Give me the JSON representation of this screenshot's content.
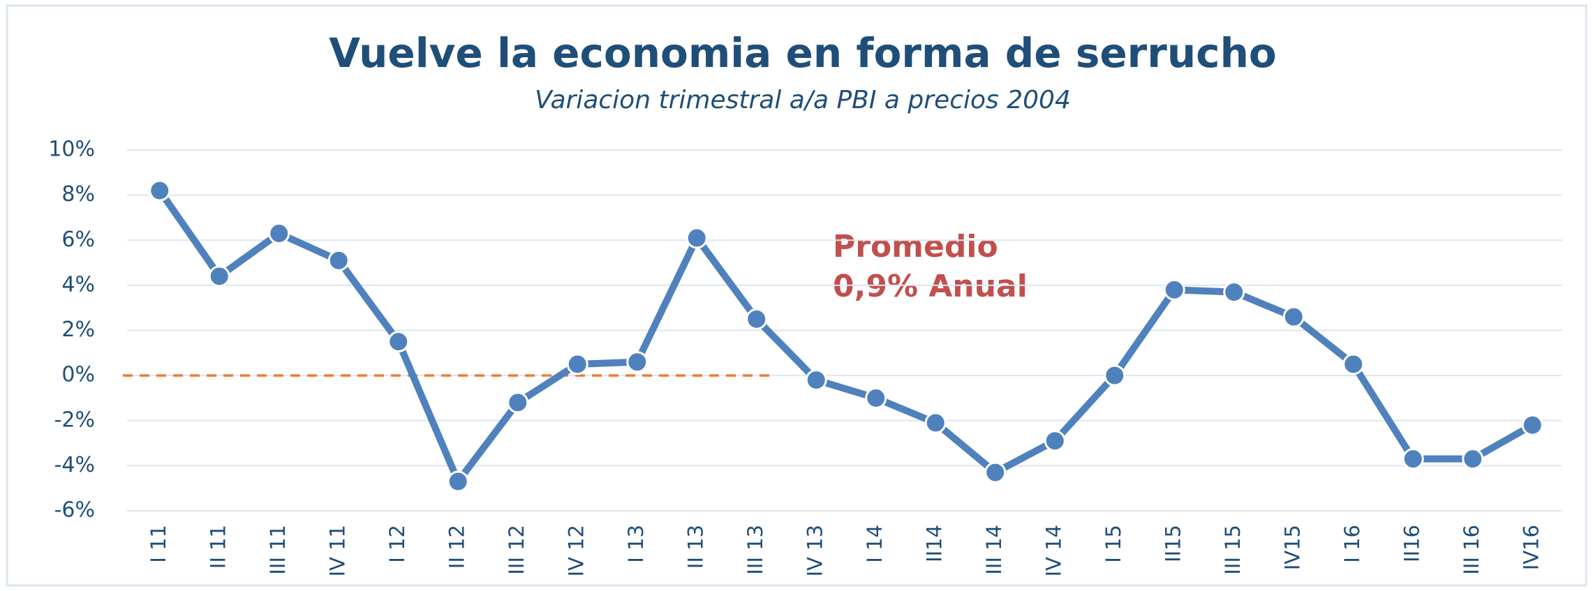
{
  "chart_data": {
    "type": "line",
    "title": "Vuelve la economia en forma de serrucho",
    "subtitle": "Variacion trimestral a/a PBI a precios 2004",
    "annotation": [
      "Promedio",
      "0,9% Anual"
    ],
    "categories": [
      "I 11",
      "II 11",
      "III 11",
      "IV 11",
      "I 12",
      "II 12",
      "III 12",
      "IV 12",
      "I 13",
      "II 13",
      "III 13",
      "IV 13",
      "I 14",
      "II14",
      "III 14",
      "IV 14",
      "I 15",
      "II15",
      "III 15",
      "IV15",
      "I 16",
      "II16",
      "III 16",
      "IV16"
    ],
    "series": [
      {
        "color": "#4f81bd",
        "values": [
          8.2,
          4.4,
          6.3,
          5.1,
          1.5,
          -4.7,
          -1.2,
          0.5,
          0.6,
          6.1,
          2.5,
          -0.2,
          -1.0,
          -2.1,
          -4.3,
          -2.9,
          0.0,
          3.8,
          3.7,
          2.6,
          0.5,
          -3.7,
          -3.7,
          -2.2
        ]
      }
    ],
    "ylim": [
      -6,
      10
    ],
    "yticks": [
      {
        "value": -6,
        "label": "-6%"
      },
      {
        "value": -4,
        "label": "-4%"
      },
      {
        "value": -2,
        "label": "-2%"
      },
      {
        "value": 0,
        "label": "0%"
      },
      {
        "value": 2,
        "label": "2%"
      },
      {
        "value": 4,
        "label": "4%"
      },
      {
        "value": 6,
        "label": "6%"
      },
      {
        "value": 8,
        "label": "8%"
      },
      {
        "value": 10,
        "label": "10%"
      }
    ],
    "reference_line": 0,
    "reference_color": "#ed7d31",
    "grid": true
  }
}
